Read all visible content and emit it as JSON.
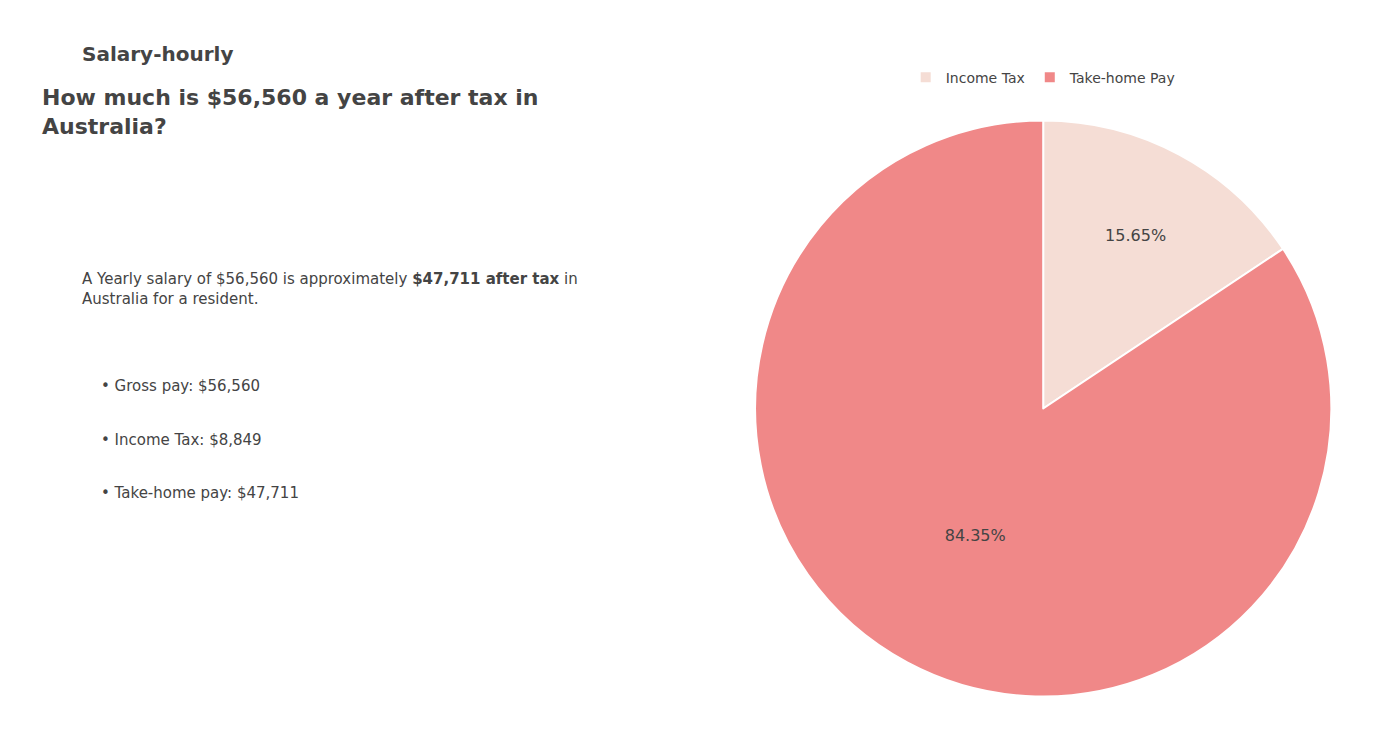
{
  "chart_data": {
    "type": "pie",
    "title": "How much is $56,560 a year after tax in\nAustralia?",
    "categories": [
      "Income Tax",
      "Take-home Pay"
    ],
    "values": [
      15.65,
      84.35
    ],
    "value_labels": [
      "15.65%",
      "84.35%"
    ],
    "colors": [
      "#f5ddd5",
      "#f08888"
    ],
    "data_labels": true,
    "legend": "top",
    "annotations": [
      "S",
      "alary-hourly",
      "A Yearly salary of $56,560 is approximately ",
      "$47,711 after tax",
      " in",
      "Australia for a resident.",
      "• Gross pay: $56,560",
      "• Income Tax: $8,849",
      "• Take-home pay: $47,711"
    ]
  }
}
